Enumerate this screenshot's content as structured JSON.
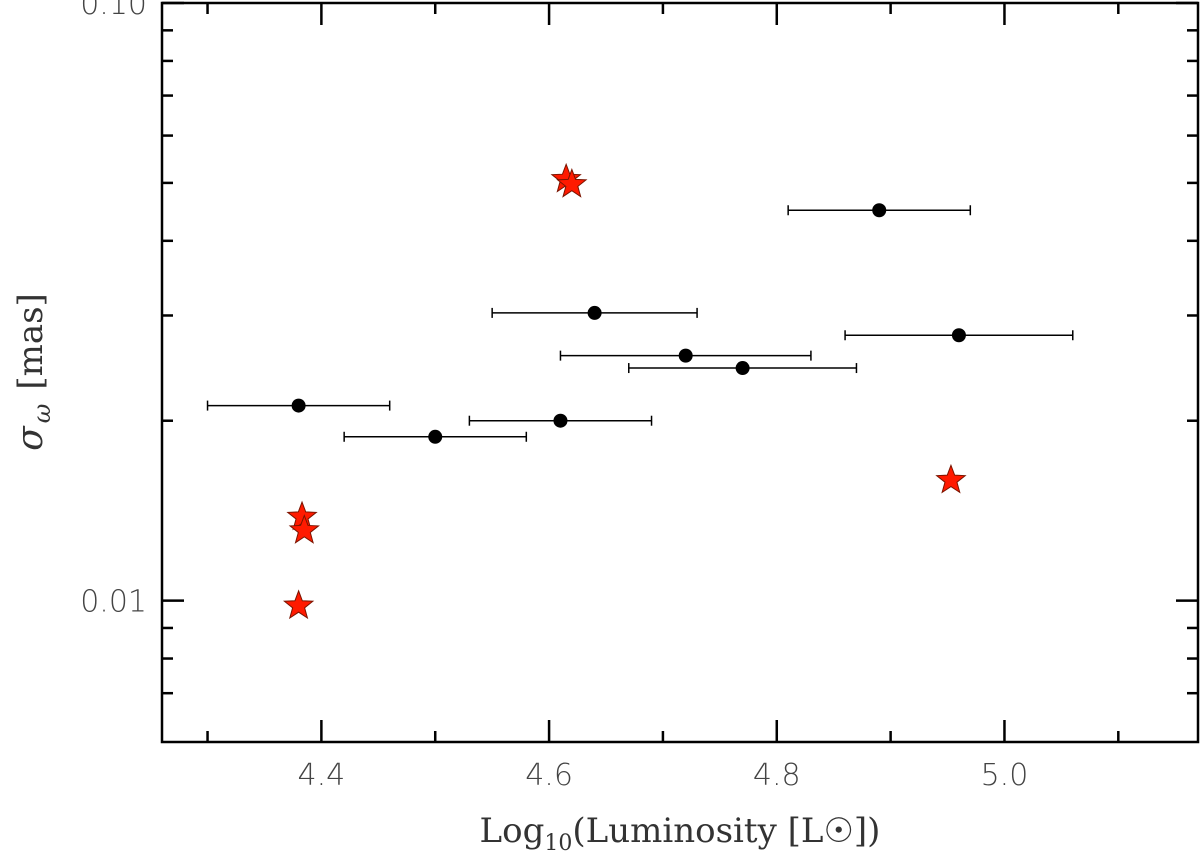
{
  "chart_data": {
    "type": "scatter",
    "title": "",
    "x_axis": {
      "label_prefix": "Log",
      "label_subscript": "10",
      "label_suffix": "(Luminosity [L",
      "label_sun_symbol": "☉",
      "label_end": "])",
      "range": [
        4.26,
        5.17
      ],
      "ticks": [
        4.4,
        4.6,
        4.8,
        5.0
      ],
      "tick_labels": [
        "4.4",
        "4.6",
        "4.8",
        "5.0"
      ],
      "minor_ticks": [
        4.3,
        4.5,
        4.7,
        4.9,
        5.1
      ],
      "scale": "linear"
    },
    "y_axis": {
      "label_symbol": "σ",
      "label_subscript": "ω",
      "label_unit": "[mas]",
      "range": [
        0.0058,
        0.1
      ],
      "ticks": [
        0.01,
        0.1
      ],
      "tick_labels": [
        "0.01",
        "0.10"
      ],
      "minor_ticks": [
        0.007,
        0.008,
        0.009,
        0.02,
        0.03,
        0.04,
        0.05,
        0.06,
        0.07,
        0.08,
        0.09
      ],
      "scale": "log"
    },
    "grid": false,
    "legend": false,
    "series": [
      {
        "marker": "circle",
        "color": "#000000",
        "points": [
          {
            "x": 4.38,
            "y": 0.0212,
            "xerr": 0.08
          },
          {
            "x": 4.5,
            "y": 0.0188,
            "xerr": 0.08
          },
          {
            "x": 4.61,
            "y": 0.02,
            "xerr": 0.08
          },
          {
            "x": 4.64,
            "y": 0.0303,
            "xerr": 0.09
          },
          {
            "x": 4.72,
            "y": 0.0257,
            "xerr": 0.11
          },
          {
            "x": 4.77,
            "y": 0.0245,
            "xerr": 0.1
          },
          {
            "x": 4.89,
            "y": 0.045,
            "xerr": 0.08
          },
          {
            "x": 4.96,
            "y": 0.0278,
            "xerr": 0.1
          }
        ]
      },
      {
        "marker": "star",
        "color": "#ff1a00",
        "points": [
          {
            "x": 4.615,
            "y": 0.0507
          },
          {
            "x": 4.62,
            "y": 0.0497
          },
          {
            "x": 4.383,
            "y": 0.0138
          },
          {
            "x": 4.385,
            "y": 0.0131
          },
          {
            "x": 4.38,
            "y": 0.0098
          },
          {
            "x": 4.953,
            "y": 0.0159
          }
        ]
      }
    ]
  }
}
